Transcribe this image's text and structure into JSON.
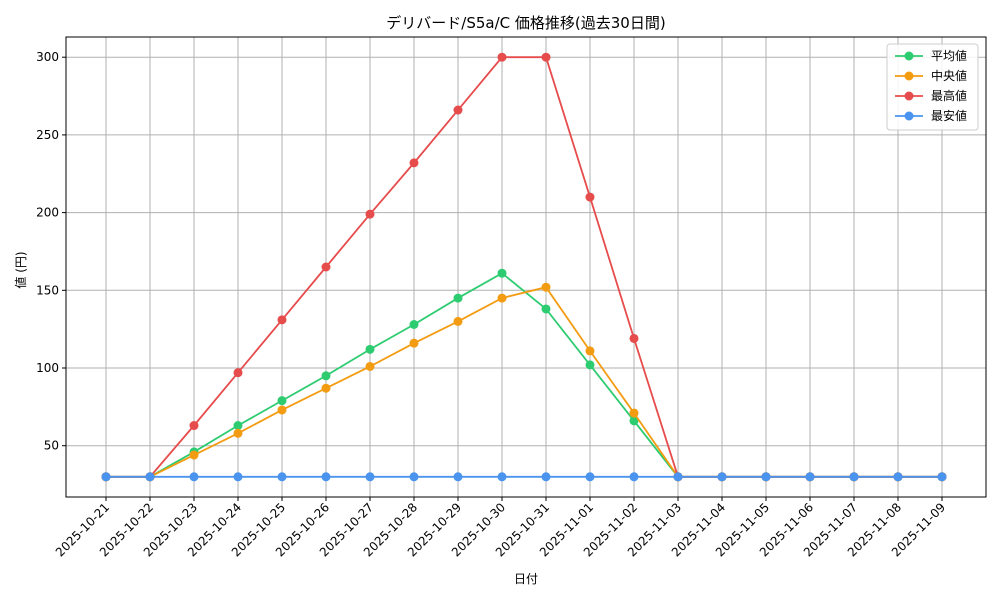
{
  "chart_data": {
    "type": "line",
    "title": "デリバード/S5a/C 価格推移(過去30日間)",
    "xlabel": "日付",
    "ylabel": "値 (円)",
    "categories": [
      "2025-10-21",
      "2025-10-22",
      "2025-10-23",
      "2025-10-24",
      "2025-10-25",
      "2025-10-26",
      "2025-10-27",
      "2025-10-28",
      "2025-10-29",
      "2025-10-30",
      "2025-10-31",
      "2025-11-01",
      "2025-11-02",
      "2025-11-03",
      "2025-11-04",
      "2025-11-05",
      "2025-11-06",
      "2025-11-07",
      "2025-11-08",
      "2025-11-09"
    ],
    "ylim": [
      17,
      313
    ],
    "yticks": [
      50,
      100,
      150,
      200,
      250,
      300
    ],
    "grid": true,
    "legend_position": "top-right",
    "series": [
      {
        "name": "平均値",
        "color": "#2ecc71",
        "values": [
          30,
          30,
          46,
          63,
          79,
          95,
          112,
          128,
          145,
          161,
          138,
          102,
          66,
          30,
          30,
          30,
          30,
          30,
          30,
          30
        ]
      },
      {
        "name": "中央値",
        "color": "#f39c12",
        "values": [
          30,
          30,
          44,
          58,
          73,
          87,
          101,
          116,
          130,
          145,
          152,
          111,
          71,
          30,
          30,
          30,
          30,
          30,
          30,
          30
        ]
      },
      {
        "name": "最高値",
        "color": "#e74c4c",
        "values": [
          30,
          30,
          63,
          97,
          131,
          165,
          199,
          232,
          266,
          300,
          300,
          210,
          119,
          30,
          30,
          30,
          30,
          30,
          30,
          30
        ]
      },
      {
        "name": "最安値",
        "color": "#4a94f0",
        "values": [
          30,
          30,
          30,
          30,
          30,
          30,
          30,
          30,
          30,
          30,
          30,
          30,
          30,
          30,
          30,
          30,
          30,
          30,
          30,
          30
        ]
      }
    ]
  }
}
